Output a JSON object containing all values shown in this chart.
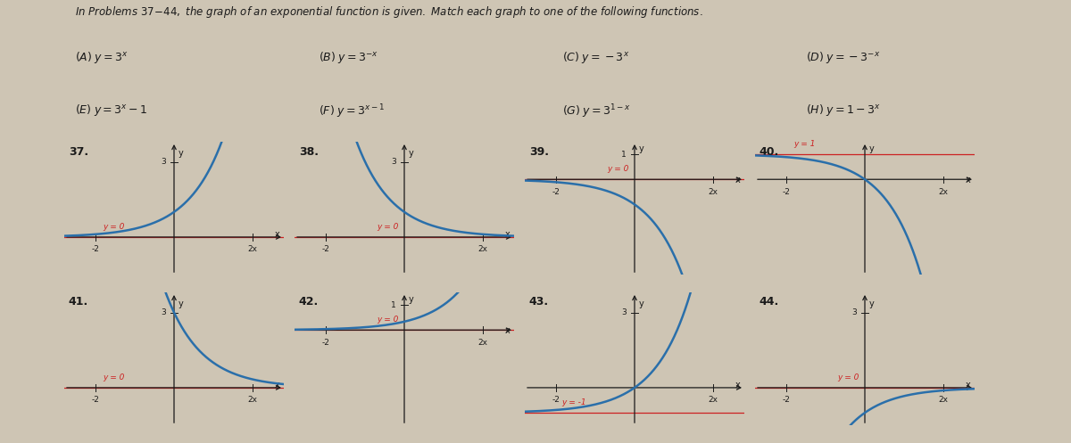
{
  "bg_color": "#cec5b4",
  "curve_color": "#2a6faa",
  "asym_color": "#cc2222",
  "text_color": "#1a1a1a",
  "graphs": [
    {
      "label": "37.",
      "func": "3^x",
      "xlim": [
        -2.8,
        2.8
      ],
      "ylim": [
        -1.5,
        3.8
      ],
      "ytick": 3,
      "asym_y": 0,
      "asym_label_left": true,
      "arrow_end": true,
      "row": 0,
      "col": 0
    },
    {
      "label": "38.",
      "func": "3^-x",
      "xlim": [
        -2.8,
        2.8
      ],
      "ylim": [
        -1.5,
        3.8
      ],
      "ytick": 3,
      "asym_y": 0,
      "asym_label_left": false,
      "arrow_end": false,
      "row": 0,
      "col": 1
    },
    {
      "label": "39.",
      "func": "-3^x",
      "xlim": [
        -2.8,
        2.8
      ],
      "ylim": [
        -3.8,
        1.5
      ],
      "ytick": 1,
      "asym_y": 0,
      "asym_label_left": false,
      "arrow_end": true,
      "row": 0,
      "col": 2
    },
    {
      "label": "40.",
      "func": "1-3^x",
      "xlim": [
        -2.8,
        2.8
      ],
      "ylim": [
        -3.8,
        1.5
      ],
      "ytick": null,
      "asym_y": 1,
      "asym_label_left": true,
      "arrow_end": true,
      "row": 0,
      "col": 3
    },
    {
      "label": "41.",
      "func": "3^(1-x)",
      "xlim": [
        -2.8,
        2.8
      ],
      "ylim": [
        -1.5,
        3.8
      ],
      "ytick": 3,
      "asym_y": 0,
      "asym_label_left": true,
      "arrow_end": false,
      "row": 1,
      "col": 0
    },
    {
      "label": "42.",
      "func": "3^(x-1)",
      "xlim": [
        -2.8,
        2.8
      ],
      "ylim": [
        -3.8,
        1.5
      ],
      "ytick": 1,
      "asym_y": 0,
      "asym_label_left": false,
      "arrow_end": true,
      "row": 1,
      "col": 1
    },
    {
      "label": "43.",
      "func": "3^x-1",
      "xlim": [
        -2.8,
        2.8
      ],
      "ylim": [
        -1.5,
        3.8
      ],
      "ytick": 3,
      "asym_y": -1,
      "asym_label_left": true,
      "arrow_end": true,
      "row": 1,
      "col": 2
    },
    {
      "label": "44.",
      "func": "-3^-x",
      "xlim": [
        -2.8,
        2.8
      ],
      "ylim": [
        -1.5,
        3.8
      ],
      "ytick": 3,
      "asym_y": 0,
      "asym_label_left": false,
      "arrow_end": false,
      "row": 1,
      "col": 3
    }
  ]
}
